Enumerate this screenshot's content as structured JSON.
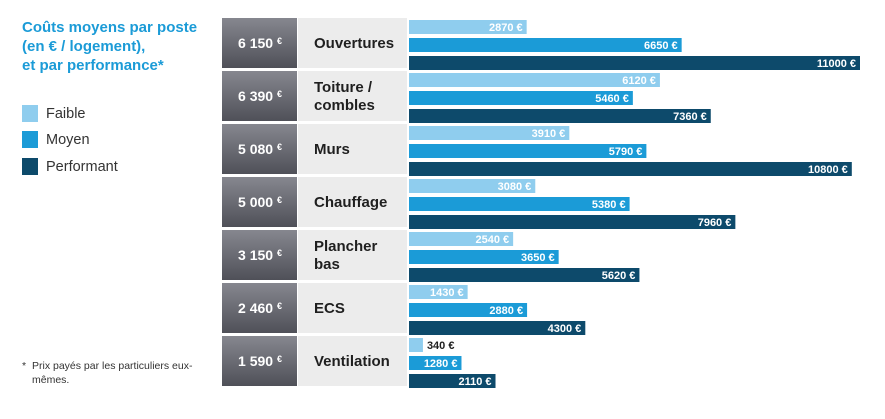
{
  "title_lines": [
    "Coûts moyens par poste",
    "(en € / logement),",
    "et par performance*"
  ],
  "legend": [
    {
      "label": "Faible",
      "color": "#8fcdee"
    },
    {
      "label": "Moyen",
      "color": "#1b9bd7"
    },
    {
      "label": "Performant",
      "color": "#0d4a6b"
    }
  ],
  "footnote_mark": "*",
  "footnote": "Prix payés par les particuliers eux-mêmes.",
  "colors": {
    "title": "#1b9bd7",
    "avg_box_top": "#86878f",
    "avg_box_bottom": "#4f5058",
    "category_box": "#ececec",
    "faible": "#8fcdee",
    "moyen": "#1b9bd7",
    "performant": "#0d4a6b"
  },
  "chart_data": {
    "type": "bar",
    "orientation": "horizontal",
    "currency": "€",
    "categories": [
      "Ouvertures",
      "Toiture / combles",
      "Murs",
      "Chauffage",
      "Plancher bas",
      "ECS",
      "Ventilation"
    ],
    "category_lines": [
      [
        "Ouvertures"
      ],
      [
        "Toiture /",
        "combles"
      ],
      [
        "Murs"
      ],
      [
        "Chauffage"
      ],
      [
        "Plancher",
        "bas"
      ],
      [
        "ECS"
      ],
      [
        "Ventilation"
      ]
    ],
    "averages": [
      "6 150",
      "6 390",
      "5 080",
      "5 000",
      "3 150",
      "2 460",
      "1 590"
    ],
    "series": [
      {
        "name": "Faible",
        "values": [
          2870,
          6120,
          3910,
          3080,
          2540,
          1430,
          340
        ],
        "labels": [
          "2870",
          "6120",
          "3910",
          "3080",
          "2540",
          "1430",
          "340"
        ]
      },
      {
        "name": "Moyen",
        "values": [
          6650,
          5460,
          5790,
          5380,
          3650,
          2880,
          1280
        ],
        "labels": [
          "6650",
          "5460",
          "5790",
          "5380",
          "3650",
          "2880",
          "1280"
        ]
      },
      {
        "name": "Performant",
        "values": [
          11000,
          7360,
          10800,
          7960,
          5620,
          4300,
          2110
        ],
        "labels": [
          "11000",
          "7360",
          "10800",
          "7960",
          "5620",
          "4300",
          "2110"
        ]
      }
    ]
  }
}
